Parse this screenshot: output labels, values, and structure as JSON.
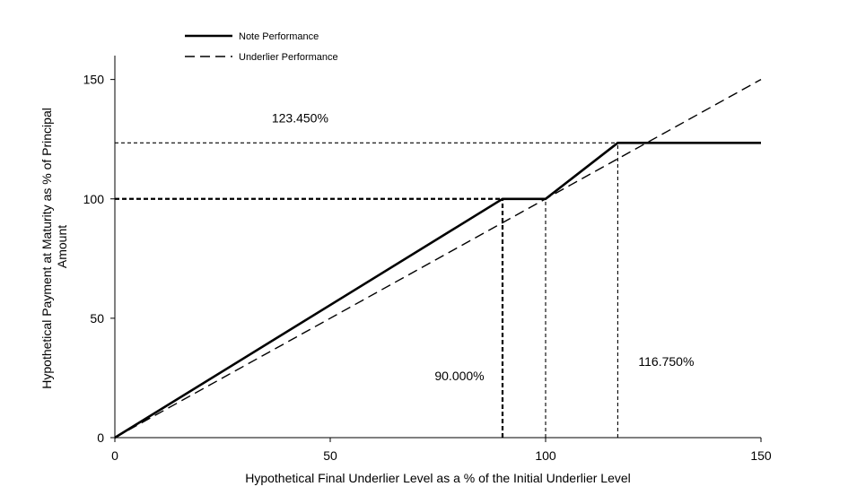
{
  "chart_data": {
    "type": "line",
    "xlabel": "Hypothetical Final Underlier Level as a % of the Initial Underlier Level",
    "ylabel_lines": [
      "Hypothetical Payment at Maturity as % of Principal",
      "Amount"
    ],
    "xlim": [
      0,
      150
    ],
    "ylim": [
      0,
      160
    ],
    "x_ticks": [
      0,
      50,
      100,
      150
    ],
    "y_ticks": [
      0,
      50,
      100,
      150
    ],
    "grid": false,
    "legend": "top-left",
    "series": [
      {
        "name": "Note Performance",
        "style": "solid",
        "points": [
          [
            0,
            0
          ],
          [
            90,
            100
          ],
          [
            100,
            100
          ],
          [
            116.75,
            123.45
          ],
          [
            150,
            123.45
          ]
        ]
      },
      {
        "name": "Underlier Performance",
        "style": "dashed",
        "points": [
          [
            0,
            0
          ],
          [
            150,
            150
          ]
        ]
      }
    ],
    "annotations": [
      {
        "text": "123.450%",
        "x": 43,
        "y": 132
      },
      {
        "text": "90.000%",
        "x": 80,
        "y": 24
      },
      {
        "text": "116.750%",
        "x": 128,
        "y": 30
      }
    ],
    "reference_lines": [
      {
        "kind": "horizontal",
        "y": 123.45,
        "x0": 0,
        "x1": 116.75,
        "weight": "light"
      },
      {
        "kind": "horizontal",
        "y": 100,
        "x0": 0,
        "x1": 90,
        "weight": "heavy"
      },
      {
        "kind": "vertical",
        "x": 90,
        "y0": 0,
        "y1": 100,
        "weight": "heavy"
      },
      {
        "kind": "vertical",
        "x": 100,
        "y0": 0,
        "y1": 100,
        "weight": "light"
      },
      {
        "kind": "vertical",
        "x": 116.75,
        "y0": 0,
        "y1": 123.45,
        "weight": "light"
      }
    ],
    "colors": {
      "line": "#000000",
      "background": "#ffffff"
    }
  }
}
